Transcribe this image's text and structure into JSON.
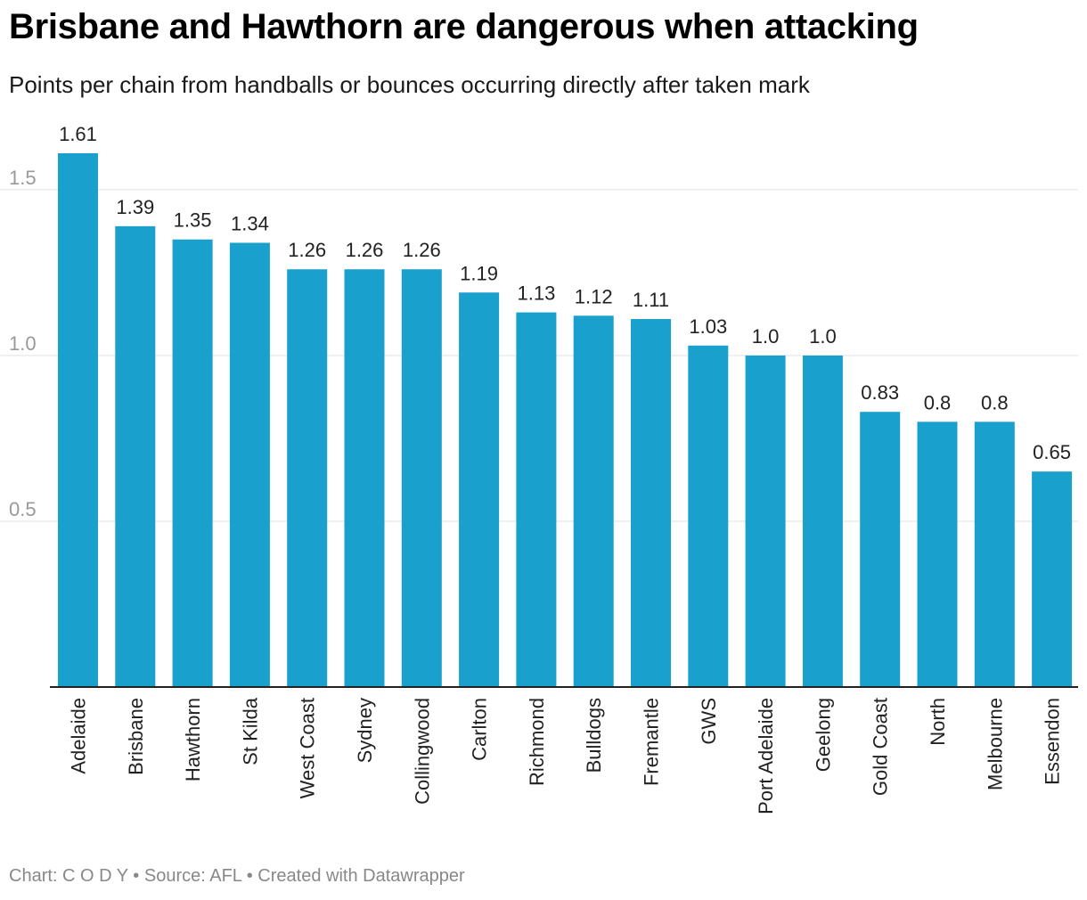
{
  "header": {
    "title": "Brisbane and Hawthorn are dangerous when attacking",
    "subtitle": "Points per chain from handballs or bounces occurring directly after taken mark"
  },
  "footer": {
    "credit": "Chart: C O D Y • Source: AFL • Created with Datawrapper"
  },
  "colors": {
    "bar": "#1aa0cc",
    "grid": "#e0e0e0",
    "axis": "#222222",
    "tick_text": "#999999",
    "label_text": "#222222"
  },
  "chart_data": {
    "type": "bar",
    "title": "Brisbane and Hawthorn are dangerous when attacking",
    "subtitle": "Points per chain from handballs or bounces occurring directly after taken mark",
    "xlabel": "",
    "ylabel": "",
    "ylim": [
      0,
      1.61
    ],
    "yticks": [
      0.5,
      1.0,
      1.5
    ],
    "ytick_labels": [
      "0.5",
      "1.0",
      "1.5"
    ],
    "grid": true,
    "categories": [
      "Adelaide",
      "Brisbane",
      "Hawthorn",
      "St Kilda",
      "West Coast",
      "Sydney",
      "Collingwood",
      "Carlton",
      "Richmond",
      "Bulldogs",
      "Fremantle",
      "GWS",
      "Port Adelaide",
      "Geelong",
      "Gold Coast",
      "North",
      "Melbourne",
      "Essendon"
    ],
    "values": [
      1.61,
      1.39,
      1.35,
      1.34,
      1.26,
      1.26,
      1.26,
      1.19,
      1.13,
      1.12,
      1.11,
      1.03,
      1.0,
      1.0,
      0.83,
      0.8,
      0.8,
      0.65
    ],
    "value_labels": [
      "1.61",
      "1.39",
      "1.35",
      "1.34",
      "1.26",
      "1.26",
      "1.26",
      "1.19",
      "1.13",
      "1.12",
      "1.11",
      "1.03",
      "1.0",
      "1.0",
      "0.83",
      "0.8",
      "0.8",
      "0.65"
    ]
  }
}
